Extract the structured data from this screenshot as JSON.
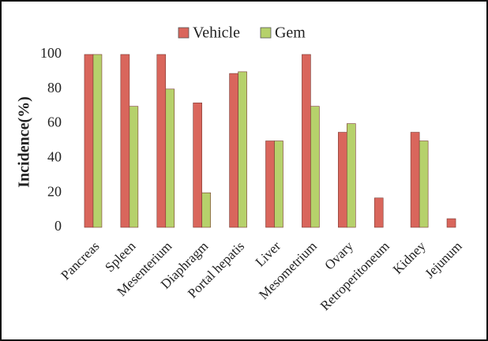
{
  "chart_data": {
    "type": "bar",
    "ylabel": "Incidence(%)",
    "categories": [
      "Pancreas",
      "Spleen",
      "Mesenterium",
      "Diaphragm",
      "Portal hepatis",
      "Liver",
      "Mesometrium",
      "Ovary",
      "Retroperitoneum",
      "Kidney",
      "Jejunum"
    ],
    "series": [
      {
        "name": "Vehicle",
        "color": "#d9665c",
        "values": [
          100,
          100,
          100,
          72,
          89,
          50,
          100,
          55,
          17,
          55,
          5
        ]
      },
      {
        "name": "Gem",
        "color": "#b6d16b",
        "values": [
          100,
          70,
          80,
          20,
          90,
          50,
          70,
          60,
          0,
          50,
          0
        ]
      }
    ],
    "ylim": [
      0,
      100
    ],
    "yticks": [
      0,
      20,
      40,
      60,
      80,
      100
    ],
    "grid": false,
    "legend": "top"
  }
}
